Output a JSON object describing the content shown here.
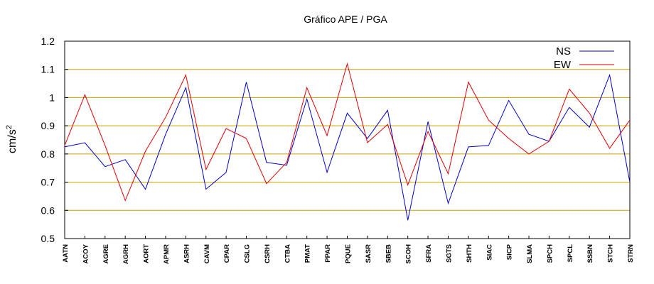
{
  "chart_data": {
    "type": "line",
    "title": "Gráfico  APE / PGA",
    "ylabel": "cm/s",
    "ylabel_superscript": "2",
    "xlabel": "",
    "ylim": [
      0.5,
      1.2
    ],
    "yticks": [
      0.5,
      0.6,
      0.7,
      0.8,
      0.9,
      1,
      1.1,
      1.2
    ],
    "ytick_labels": [
      "0.5",
      "0.6",
      "0.7",
      "0.8",
      "0.9",
      "1",
      "1.1",
      "1.2"
    ],
    "grid": "horizontal",
    "grid_color": "#c8a000",
    "legend_position": "top-right",
    "categories": [
      "AATN",
      "ACOY",
      "AGRE",
      "AGRH",
      "AORT",
      "APMR",
      "ASRH",
      "CAVM",
      "CPAR",
      "CSLG",
      "CSRH",
      "CTBA",
      "PMAT",
      "PPAR",
      "PQUE",
      "SASR",
      "SBEB",
      "SCOH",
      "SFRA",
      "SGTS",
      "SHTH",
      "SIAC",
      "SICP",
      "SLMA",
      "SPCH",
      "SPCL",
      "SSBN",
      "STCH",
      "STRN"
    ],
    "series": [
      {
        "name": "NS",
        "color": "#0000cc",
        "values": [
          0.825,
          0.84,
          0.755,
          0.78,
          0.675,
          0.87,
          1.035,
          0.675,
          0.735,
          1.055,
          0.77,
          0.76,
          0.995,
          0.735,
          0.945,
          0.855,
          0.955,
          0.565,
          0.915,
          0.625,
          0.825,
          0.83,
          0.99,
          0.87,
          0.845,
          0.965,
          0.895,
          1.08,
          0.7
        ]
      },
      {
        "name": "EW",
        "color": "#e00000",
        "values": [
          0.83,
          1.01,
          0.83,
          0.635,
          0.81,
          0.93,
          1.08,
          0.745,
          0.89,
          0.855,
          0.695,
          0.77,
          1.035,
          0.865,
          1.12,
          0.84,
          0.905,
          0.69,
          0.88,
          0.73,
          1.055,
          0.92,
          0.855,
          0.8,
          0.845,
          1.03,
          0.945,
          0.82,
          0.92
        ]
      }
    ]
  }
}
